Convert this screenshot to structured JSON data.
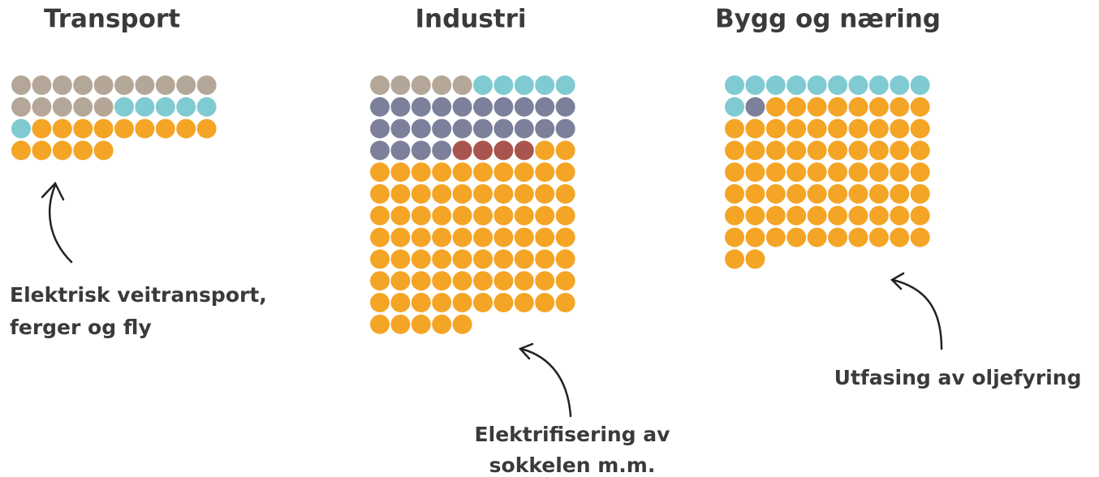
{
  "chart_data": [
    {
      "type": "waffle",
      "title": "Transport",
      "annotation": [
        "Elektrisk veitransport,",
        "ferger og fly"
      ],
      "series": [
        {
          "color": "#b5a797",
          "values": [
            15
          ]
        },
        {
          "color": "#7fcbd1",
          "values": [
            6
          ]
        },
        {
          "color": "#f4a526",
          "values": [
            14
          ]
        }
      ]
    },
    {
      "type": "waffle",
      "title": "Industri",
      "annotation": [
        "Elektrifisering av",
        "sokkelen m.m."
      ],
      "series": [
        {
          "color": "#b5a797",
          "values": [
            5
          ]
        },
        {
          "color": "#7fcbd1",
          "values": [
            5
          ]
        },
        {
          "color": "#7d809a",
          "values": [
            24
          ]
        },
        {
          "color": "#a9554f",
          "values": [
            4
          ]
        },
        {
          "color": "#f4a526",
          "values": [
            77
          ]
        }
      ]
    },
    {
      "type": "waffle",
      "title": "Bygg og næring",
      "annotation": [
        "Utfasing av oljefyring"
      ],
      "series": [
        {
          "color": "#7fcbd1",
          "values": [
            11
          ]
        },
        {
          "color": "#7d809a",
          "values": [
            1
          ]
        },
        {
          "color": "#f4a526",
          "values": [
            70
          ]
        }
      ]
    }
  ]
}
